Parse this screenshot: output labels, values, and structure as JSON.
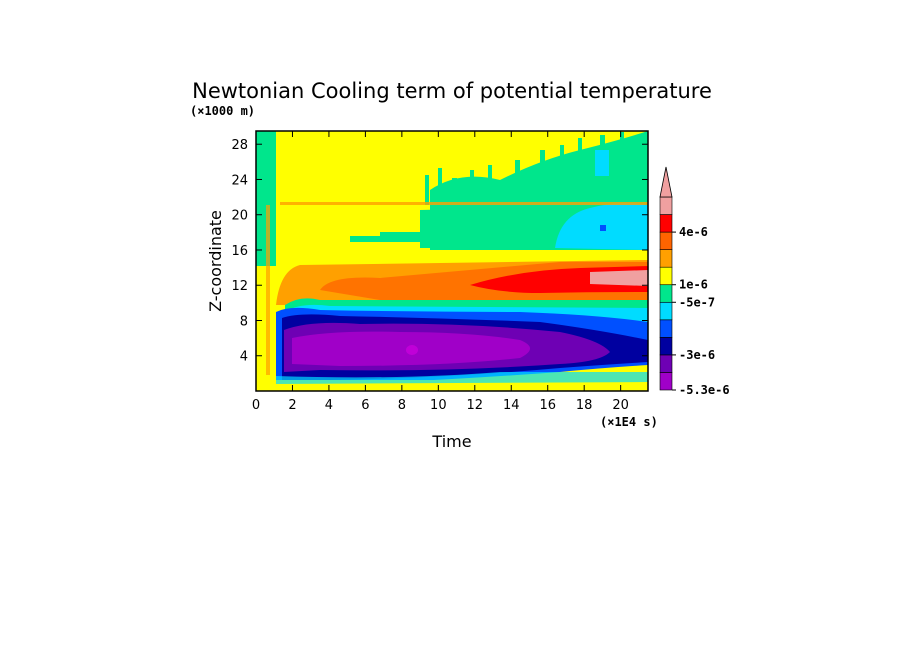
{
  "chart_data": {
    "type": "heatmap",
    "title": "Newtonian Cooling term of potential temperature",
    "xlabel": "Time",
    "ylabel": "Z-coordinate",
    "x_scale_note": "(×1E4 s)",
    "y_scale_note": "(×1000 m)",
    "xlim": [
      0,
      21.5
    ],
    "ylim": [
      0,
      29.5
    ],
    "x_ticks": [
      0,
      2,
      4,
      6,
      8,
      10,
      12,
      14,
      16,
      18,
      20
    ],
    "y_ticks": [
      4,
      8,
      12,
      16,
      20,
      24,
      28
    ],
    "colorbar": {
      "colors": [
        "#a000c8",
        "#6e00b4",
        "#0000a0",
        "#0050ff",
        "#00dcff",
        "#00e68c",
        "#ffff00",
        "#ffa000",
        "#ff6400",
        "#ff0000",
        "#f0a0a0"
      ],
      "extend_top_color": "#f0a0a0",
      "tick_labels": [
        "4e-6",
        "1e-6",
        "-5e-7",
        "-3e-6",
        "-5.3e-6"
      ]
    },
    "layers": [
      {
        "name": "upper-yellow",
        "level": "-5e-7 to 1e-6",
        "color": "#ffff00",
        "x": [
          0.9,
          21.5
        ],
        "z": [
          14.5,
          29.5
        ]
      },
      {
        "name": "left-green-strip",
        "level": "-1e-6 to -5e-7",
        "color": "#00e68c",
        "x": [
          0,
          1.0
        ],
        "z": [
          14.8,
          29.5
        ]
      },
      {
        "name": "upper-green",
        "level": "-1e-6 to -5e-7",
        "color": "#00e68c",
        "x": [
          10,
          21.5
        ],
        "z": [
          16.0,
          27.0
        ]
      },
      {
        "name": "upper-cyan",
        "level": "-2e-6 to -1e-6",
        "color": "#00dcff",
        "x": [
          16.5,
          21.5
        ],
        "z": [
          17.5,
          23.5
        ]
      },
      {
        "name": "orange-band",
        "level": "1e-6 to 2e-6",
        "color": "#ffa000",
        "x": [
          1.5,
          21.5
        ],
        "z": [
          10.5,
          14.5
        ]
      },
      {
        "name": "red-band",
        "level": "3e-6 to 4e-6",
        "color": "#ff0000",
        "x": [
          12,
          21.5
        ],
        "z": [
          11.5,
          13.5
        ]
      },
      {
        "name": "pink-max",
        "level": "> 4e-6",
        "color": "#f0a0a0",
        "x": [
          18,
          21.5
        ],
        "z": [
          12.0,
          13.0
        ]
      },
      {
        "name": "blue-band",
        "level": "-3e-6 to -2e-6",
        "color": "#0050ff",
        "x": [
          1.5,
          21.5
        ],
        "z": [
          1.2,
          9.8
        ]
      },
      {
        "name": "navy-band",
        "level": "-4e-6 to -3e-6",
        "color": "#0000a0",
        "x": [
          1.8,
          21.5
        ],
        "z": [
          1.6,
          9.0
        ]
      },
      {
        "name": "purple-core",
        "level": "-5.3e-6 to -4e-6",
        "color": "#6e00b4",
        "x": [
          2,
          17
        ],
        "z": [
          2.5,
          7.5
        ]
      },
      {
        "name": "magenta-min",
        "level": "< -5.3e-6",
        "color": "#a000c8",
        "x": [
          2.5,
          14
        ],
        "z": [
          3.5,
          6.5
        ]
      }
    ]
  }
}
